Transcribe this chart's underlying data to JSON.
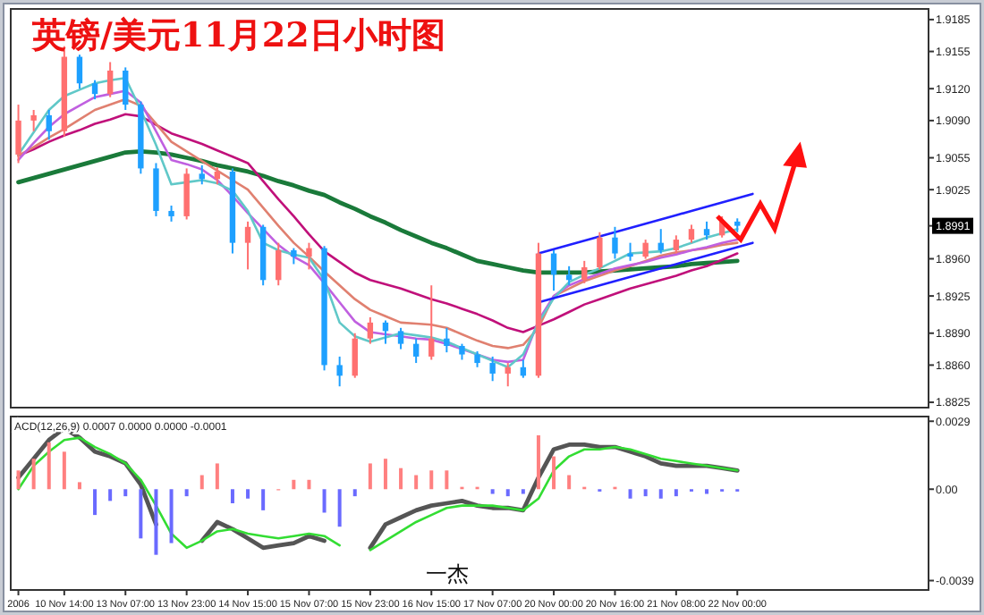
{
  "chart_data": [
    {
      "type": "candlestick",
      "title": "英镑/美元11月22日小时图",
      "tick_labels": "y",
      "ylim": [
        1.882,
        1.9195
      ],
      "yticks": [
        {
          "value": 1.9185,
          "label": "1.9185"
        },
        {
          "value": 1.9155,
          "label": "1.9155"
        },
        {
          "value": 1.912,
          "label": "1.9120"
        },
        {
          "value": 1.909,
          "label": "1.9090"
        },
        {
          "value": 1.9055,
          "label": "1.9055"
        },
        {
          "value": 1.9025,
          "label": "1.9025"
        },
        {
          "value": 1.8991,
          "label": "1.8991"
        },
        {
          "value": 1.896,
          "label": "1.8960"
        },
        {
          "value": 1.8925,
          "label": "1.8925"
        },
        {
          "value": 1.889,
          "label": "1.8890"
        },
        {
          "value": 1.886,
          "label": "1.8860"
        },
        {
          "value": 1.8825,
          "label": "1.8825"
        }
      ],
      "categories": [
        null,
        null,
        null,
        null,
        null,
        null,
        null,
        null,
        null,
        null,
        null,
        null,
        null,
        null,
        null,
        null,
        null,
        null,
        null,
        null,
        null,
        null,
        null,
        null,
        null,
        null,
        null,
        null,
        null,
        null,
        null,
        null,
        null,
        null,
        null,
        null,
        null,
        null,
        null,
        null,
        null,
        null,
        null,
        null,
        null,
        null,
        null,
        null,
        null,
        null,
        null,
        null,
        null,
        null,
        null,
        null,
        null,
        null,
        null,
        null
      ],
      "ohlc": [
        [
          1.9058,
          1.9105,
          1.905,
          1.909
        ],
        [
          1.909,
          1.91,
          1.908,
          1.9095
        ],
        [
          1.9095,
          1.91,
          1.9072,
          1.908
        ],
        [
          1.908,
          1.916,
          1.9075,
          1.915
        ],
        [
          1.915,
          1.9152,
          1.912,
          1.9125
        ],
        [
          1.9125,
          1.9128,
          1.911,
          1.9115
        ],
        [
          1.9115,
          1.9145,
          1.9112,
          1.9137
        ],
        [
          1.9137,
          1.914,
          1.91,
          1.9105
        ],
        [
          1.9105,
          1.9108,
          1.904,
          1.9045
        ],
        [
          1.9045,
          1.905,
          1.9,
          1.9005
        ],
        [
          1.9005,
          1.901,
          1.8995,
          1.9
        ],
        [
          1.9,
          1.9045,
          1.8997,
          1.904
        ],
        [
          1.904,
          1.9048,
          1.903,
          1.9035
        ],
        [
          1.9035,
          1.9046,
          1.903,
          1.9042
        ],
        [
          1.9042,
          1.9045,
          1.8965,
          1.8975
        ],
        [
          1.8975,
          1.8995,
          1.895,
          1.899
        ],
        [
          1.899,
          1.8992,
          1.8935,
          1.894
        ],
        [
          1.894,
          1.8975,
          1.8935,
          1.8968
        ],
        [
          1.8968,
          1.897,
          1.8955,
          1.8962
        ],
        [
          1.8962,
          1.8975,
          1.895,
          1.897
        ],
        [
          1.897,
          1.8972,
          1.8855,
          1.886
        ],
        [
          1.886,
          1.8868,
          1.884,
          1.885
        ],
        [
          1.885,
          1.889,
          1.8848,
          1.8885
        ],
        [
          1.8885,
          1.8905,
          1.888,
          1.89
        ],
        [
          1.89,
          1.8902,
          1.888,
          1.8892
        ],
        [
          1.8892,
          1.8895,
          1.8875,
          1.888
        ],
        [
          1.888,
          1.8885,
          1.8862,
          1.8868
        ],
        [
          1.8868,
          1.8935,
          1.8865,
          1.8885
        ],
        [
          1.8885,
          1.8895,
          1.8872,
          1.8878
        ],
        [
          1.8878,
          1.888,
          1.8865,
          1.887
        ],
        [
          1.887,
          1.8873,
          1.8858,
          1.8862
        ],
        [
          1.8862,
          1.8868,
          1.8845,
          1.8852
        ],
        [
          1.8852,
          1.8862,
          1.884,
          1.8858
        ],
        [
          1.8858,
          1.8865,
          1.8848,
          1.885
        ],
        [
          1.885,
          1.8975,
          1.8848,
          1.8965
        ],
        [
          1.8965,
          1.8968,
          1.893,
          1.8945
        ],
        [
          1.8945,
          1.8953,
          1.8935,
          1.894
        ],
        [
          1.894,
          1.8958,
          1.8937,
          1.8952
        ],
        [
          1.8952,
          1.8985,
          1.895,
          1.898
        ],
        [
          1.898,
          1.899,
          1.896,
          1.8965
        ],
        [
          1.8965,
          1.8975,
          1.8958,
          1.8962
        ],
        [
          1.8962,
          1.8978,
          1.896,
          1.8975
        ],
        [
          1.8975,
          1.8988,
          1.8965,
          1.8968
        ],
        [
          1.8968,
          1.8982,
          1.8965,
          1.8978
        ],
        [
          1.8978,
          1.8992,
          1.8975,
          1.8988
        ],
        [
          1.8988,
          1.8995,
          1.8978,
          1.8982
        ],
        [
          1.8982,
          1.9,
          1.898,
          1.8995
        ],
        [
          1.8995,
          1.8998,
          1.8985,
          1.8991
        ],
        null,
        null,
        null,
        null,
        null,
        null,
        null,
        null,
        null,
        null,
        null,
        null
      ],
      "colors": [
        "#ff7070",
        "#ff7070",
        "#1ea0ff",
        "#ff7070",
        "#1ea0ff",
        "#1ea0ff",
        "#ff7070",
        "#1ea0ff",
        "#1ea0ff",
        "#1ea0ff",
        "#1ea0ff",
        "#ff7070",
        "#1ea0ff",
        "#ff7070",
        "#1ea0ff",
        "#ff7070",
        "#1ea0ff",
        "#ff7070",
        "#1ea0ff",
        "#ff7070",
        "#1ea0ff",
        "#1ea0ff",
        "#ff7070",
        "#ff7070",
        "#1ea0ff",
        "#1ea0ff",
        "#1ea0ff",
        "#ff7070",
        "#1ea0ff",
        "#1ea0ff",
        "#1ea0ff",
        "#1ea0ff",
        "#ff7070",
        "#1ea0ff",
        "#ff7070",
        "#1ea0ff",
        "#1ea0ff",
        "#ff7070",
        "#ff7070",
        "#1ea0ff",
        "#1ea0ff",
        "#ff7070",
        "#1ea0ff",
        "#ff7070",
        "#ff7070",
        "#1ea0ff",
        "#ff7070",
        "#1ea0ff",
        null,
        null,
        null,
        null,
        null,
        null,
        null,
        null,
        null,
        null,
        null,
        null
      ],
      "series": [
        {
          "type": "line",
          "color": "#1a7a3a",
          "values": [
            1.9032,
            1.9036,
            1.904,
            1.9044,
            1.9048,
            1.9052,
            1.9056,
            1.906,
            1.9061,
            1.906,
            1.9058,
            1.9055,
            1.9052,
            1.9048,
            1.9045,
            1.9042,
            1.9038,
            1.9033,
            1.9029,
            1.9024,
            1.902,
            1.9013,
            1.9007,
            1.9,
            1.8994,
            1.8987,
            1.8981,
            1.8975,
            1.897,
            1.8964,
            1.8958,
            1.8955,
            1.8952,
            1.8949,
            1.8947,
            1.8947,
            1.8947,
            1.8947,
            1.8948,
            1.8949,
            1.895,
            1.8951,
            1.8952,
            1.8953,
            1.8955,
            1.8956,
            1.8957,
            1.8958,
            null,
            null,
            null,
            null,
            null,
            null,
            null,
            null,
            null,
            null,
            null,
            null
          ]
        },
        {
          "type": "line",
          "color": "#c0107a",
          "values": [
            1.9057,
            1.9063,
            1.907,
            1.9076,
            1.9081,
            1.9087,
            1.9091,
            1.9096,
            1.9094,
            1.9086,
            1.9078,
            1.9073,
            1.9068,
            1.9062,
            1.9056,
            1.905,
            1.9033,
            1.9016,
            1.9,
            1.8983,
            1.8967,
            1.8957,
            1.8947,
            1.894,
            1.8936,
            1.8932,
            1.8927,
            1.8922,
            1.8918,
            1.8913,
            1.8908,
            1.8902,
            1.8895,
            1.8891,
            1.8897,
            1.8903,
            1.891,
            1.8917,
            1.8922,
            1.8927,
            1.8932,
            1.8936,
            1.894,
            1.8944,
            1.8949,
            1.8953,
            1.8959,
            1.8965,
            null,
            null,
            null,
            null,
            null,
            null,
            null,
            null,
            null,
            null,
            null,
            null
          ]
        },
        {
          "type": "line",
          "color": "#e08070",
          "values": [
            1.9057,
            1.9065,
            1.9074,
            1.9082,
            1.9091,
            1.91,
            1.9105,
            1.911,
            1.9104,
            1.9087,
            1.907,
            1.9061,
            1.9052,
            1.9043,
            1.9034,
            1.9025,
            1.9008,
            1.8991,
            1.8975,
            1.8962,
            1.8948,
            1.8935,
            1.8922,
            1.8912,
            1.8906,
            1.89,
            1.8899,
            1.8898,
            1.8895,
            1.8889,
            1.8883,
            1.8878,
            1.8876,
            1.8879,
            1.8895,
            1.8925,
            1.8932,
            1.8939,
            1.8944,
            1.8949,
            1.8953,
            1.8958,
            1.8963,
            1.8966,
            1.8968,
            1.897,
            1.8973,
            1.8975,
            null,
            null,
            null,
            null,
            null,
            null,
            null,
            null,
            null,
            null,
            null,
            null
          ]
        },
        {
          "type": "line",
          "color": "#c060e0",
          "values": [
            1.9053,
            1.9069,
            1.9084,
            1.9096,
            1.9104,
            1.9112,
            1.9115,
            1.9118,
            1.9107,
            1.908,
            1.9053,
            1.9049,
            1.9044,
            1.9034,
            1.9019,
            1.9003,
            1.8988,
            1.8973,
            1.8962,
            1.8954,
            1.8937,
            1.8919,
            1.8901,
            1.8891,
            1.8889,
            1.8887,
            1.8885,
            1.8884,
            1.888,
            1.8875,
            1.887,
            1.8865,
            1.8863,
            1.8865,
            1.8902,
            1.8925,
            1.8935,
            1.8941,
            1.8946,
            1.8951,
            1.8954,
            1.8957,
            1.8961,
            1.8964,
            1.8968,
            1.8971,
            1.8975,
            1.8978,
            null,
            null,
            null,
            null,
            null,
            null,
            null,
            null,
            null,
            null,
            null,
            null
          ]
        },
        {
          "type": "line",
          "color": "#60c8c8",
          "values": [
            1.9058,
            1.9079,
            1.91,
            1.9113,
            1.9119,
            1.9125,
            1.9128,
            1.913,
            1.91,
            1.9067,
            1.903,
            1.9032,
            1.9034,
            1.9031,
            1.9024,
            1.9005,
            1.8975,
            1.8968,
            1.8964,
            1.8961,
            1.894,
            1.89,
            1.8887,
            1.8882,
            1.8886,
            1.889,
            1.8888,
            1.8886,
            1.8882,
            1.8876,
            1.887,
            1.8864,
            1.8858,
            1.887,
            1.89,
            1.8923,
            1.8938,
            1.8945,
            1.8951,
            1.8958,
            1.8965,
            1.8966,
            1.8967,
            1.897,
            1.8975,
            1.898,
            1.8984,
            1.8988,
            null,
            null,
            null,
            null,
            null,
            null,
            null,
            null,
            null,
            null,
            null,
            null
          ]
        },
        {
          "type": "line",
          "color": "#2020ff",
          "values": [
            null,
            null,
            null,
            null,
            null,
            null,
            null,
            null,
            null,
            null,
            null,
            null,
            null,
            null,
            null,
            null,
            null,
            null,
            null,
            null,
            null,
            null,
            null,
            null,
            null,
            null,
            null,
            null,
            null,
            null,
            null,
            null,
            null,
            null,
            1.8965,
            1.8969,
            1.8973,
            1.8977,
            1.8981,
            1.8985,
            1.8989,
            1.8993,
            1.8997,
            1.9001,
            1.9005,
            1.9009,
            1.9013,
            1.9017,
            1.9021,
            null,
            null,
            null,
            null,
            null,
            null,
            null,
            null,
            null,
            null,
            null
          ]
        },
        {
          "type": "line",
          "color": "#2020ff",
          "values": [
            null,
            null,
            null,
            null,
            null,
            null,
            null,
            null,
            null,
            null,
            null,
            null,
            null,
            null,
            null,
            null,
            null,
            null,
            null,
            null,
            null,
            null,
            null,
            null,
            null,
            null,
            null,
            null,
            null,
            null,
            null,
            null,
            null,
            null,
            1.8919,
            1.8923,
            1.8927,
            1.8931,
            1.8935,
            1.8939,
            1.8943,
            1.8947,
            1.8951,
            1.8955,
            1.8959,
            1.8963,
            1.8967,
            1.8971,
            1.8975,
            null,
            null,
            null,
            null,
            null,
            null,
            null,
            null,
            null,
            null,
            null
          ]
        }
      ]
    },
    {
      "type": "bar",
      "title": "ACD(12,26,9) 0.0007 0.0000 0.0000 -0.0001",
      "ylim": [
        -0.0043,
        0.0031
      ],
      "yticks": [
        {
          "value": 0.0029,
          "label": "0.0029"
        },
        {
          "value": 0,
          "label": "0.00"
        },
        {
          "value": -0.0039,
          "label": "-0.0039"
        }
      ],
      "categories": [
        "2006",
        null,
        null,
        "10 Nov 14:00",
        null,
        null,
        null,
        "13 Nov 07:00",
        null,
        null,
        null,
        "13 Nov 23:00",
        null,
        null,
        null,
        "14 Nov 15:00",
        null,
        null,
        null,
        "15 Nov 07:00",
        null,
        null,
        null,
        "15 Nov 23:00",
        null,
        null,
        null,
        "16 Nov 15:00",
        null,
        null,
        null,
        "17 Nov 07:00",
        null,
        null,
        null,
        "20 Nov 00:00",
        null,
        null,
        null,
        "20 Nov 16:00",
        null,
        null,
        null,
        "21 Nov 08:00",
        null,
        null,
        null,
        "22 Nov 00:00",
        null,
        null,
        null,
        null,
        null,
        null,
        null,
        null,
        null,
        null,
        null,
        null
      ],
      "annotations": [
        "一杰"
      ],
      "values": [
        0.0008,
        0.0013,
        0.002,
        0.0016,
        0.0003,
        -0.0011,
        -0.0005,
        -0.0003,
        -0.0021,
        -0.0028,
        -0.0023,
        -0.0003,
        0.0006,
        0.0011,
        -0.0006,
        -0.0004,
        -0.0009,
        0,
        0.0004,
        0.0004,
        -0.001,
        -0.0016,
        -0.0003,
        0.0011,
        0.0013,
        0.0009,
        0.0006,
        0.0008,
        0.0008,
        0.0001,
        0.0001,
        -0.0002,
        -0.0003,
        -0.0002,
        0.0023,
        0.0014,
        0.0006,
        0.0001,
        -0.0001,
        0.0001,
        -0.0004,
        -0.0003,
        -0.0004,
        -0.0003,
        -0.0001,
        -0.0002,
        -0.0001,
        -0.0001,
        null,
        null,
        null,
        null,
        null,
        null,
        null,
        null,
        null,
        null,
        null,
        null
      ],
      "colors": [
        "#ff8080",
        "#ff8080",
        "#ff8080",
        "#ff8080",
        "#ff8080",
        "#6a6aff",
        "#6a6aff",
        "#6a6aff",
        "#6a6aff",
        "#6a6aff",
        "#6a6aff",
        "#6a6aff",
        "#ff8080",
        "#ff8080",
        "#6a6aff",
        "#6a6aff",
        "#6a6aff",
        "#ff8080",
        "#ff8080",
        "#ff8080",
        "#6a6aff",
        "#6a6aff",
        "#6a6aff",
        "#ff8080",
        "#ff8080",
        "#ff8080",
        "#ff8080",
        "#ff8080",
        "#ff8080",
        "#ff8080",
        "#ff8080",
        "#6a6aff",
        "#6a6aff",
        "#6a6aff",
        "#ff8080",
        "#ff8080",
        "#ff8080",
        "#ff8080",
        "#6a6aff",
        "#ff8080",
        "#6a6aff",
        "#6a6aff",
        "#6a6aff",
        "#6a6aff",
        "#6a6aff",
        "#6a6aff",
        "#6a6aff",
        "#6a6aff",
        null,
        null,
        null,
        null,
        null,
        null,
        null,
        null,
        null,
        null,
        null,
        null
      ],
      "series": [
        {
          "type": "line",
          "color": "#555555",
          "values": [
            0.0005,
            0.0013,
            0.0021,
            0.0026,
            0.0022,
            0.0016,
            0.0014,
            0.0011,
            0.0002,
            -0.0015,
            null,
            null,
            -0.0022,
            -0.0014,
            -0.0017,
            -0.0021,
            -0.0025,
            -0.0024,
            -0.0023,
            -0.002,
            -0.0022,
            null,
            null,
            -0.0025,
            -0.0015,
            -0.0012,
            -0.0009,
            -0.0007,
            -0.0006,
            -0.0005,
            -0.0007,
            -0.0008,
            -0.0008,
            -0.0009,
            0.0005,
            0.0017,
            0.0019,
            0.0019,
            0.0018,
            0.0018,
            0.0016,
            0.0014,
            0.0011,
            0.001,
            0.001,
            0.001,
            0.0009,
            0.0008,
            null,
            null,
            null,
            null,
            null,
            null,
            null,
            null,
            null,
            null,
            null,
            null
          ]
        },
        {
          "type": "line",
          "color": "#33dd33",
          "values": [
            0,
            0.001,
            0.0016,
            0.0021,
            0.0022,
            0.0018,
            0.0015,
            0.0011,
            0.0004,
            -0.0007,
            -0.0019,
            -0.0025,
            -0.0022,
            -0.0018,
            -0.0017,
            -0.0019,
            -0.002,
            -0.0021,
            -0.002,
            -0.0019,
            -0.002,
            -0.0024,
            null,
            -0.0026,
            -0.0022,
            -0.0018,
            -0.0014,
            -0.0011,
            -0.0008,
            -0.0007,
            -0.0007,
            -0.0007,
            -0.0008,
            -0.0009,
            -0.0004,
            0.0008,
            0.0014,
            0.0017,
            0.0017,
            0.0018,
            0.0017,
            0.0015,
            0.0013,
            0.0012,
            0.0011,
            0.001,
            0.0009,
            0.0008,
            null,
            null,
            null,
            null,
            null,
            null,
            null,
            null,
            null,
            null,
            null,
            null
          ]
        }
      ]
    }
  ]
}
